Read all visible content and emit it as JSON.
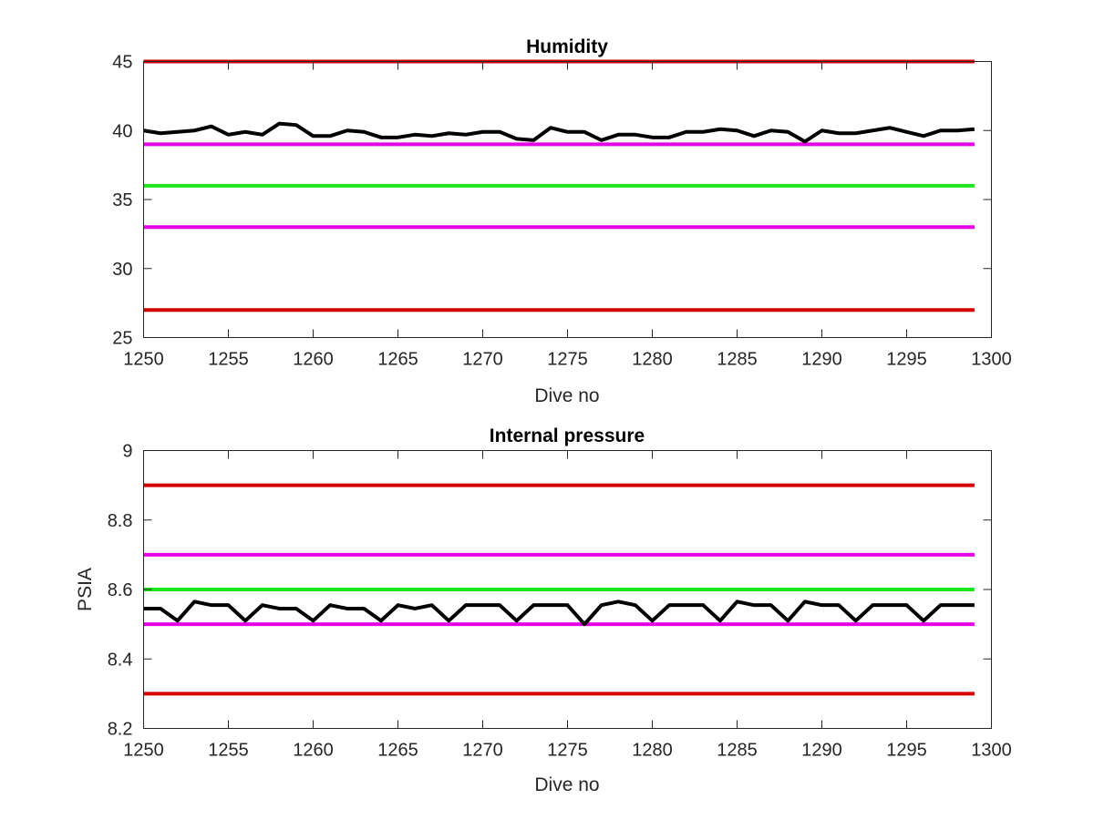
{
  "chart_data": [
    {
      "type": "line",
      "title": "Humidity",
      "xlabel": "Dive no",
      "ylabel": "",
      "xlim": [
        1250,
        1300
      ],
      "ylim": [
        25,
        45
      ],
      "xticks": [
        "1250",
        "1255",
        "1260",
        "1265",
        "1270",
        "1275",
        "1280",
        "1285",
        "1290",
        "1295",
        "1300"
      ],
      "yticks": [
        "25",
        "30",
        "35",
        "40",
        "45"
      ],
      "grid": false,
      "series": [
        {
          "color": "#d40000",
          "x": [
            1250,
            1299
          ],
          "y": [
            45,
            45
          ]
        },
        {
          "color": "#e600e6",
          "x": [
            1250,
            1299
          ],
          "y": [
            39,
            39
          ]
        },
        {
          "color": "#1ee61e",
          "x": [
            1250,
            1299
          ],
          "y": [
            36,
            36
          ]
        },
        {
          "color": "#e600e6",
          "x": [
            1250,
            1299
          ],
          "y": [
            33,
            33
          ]
        },
        {
          "color": "#d40000",
          "x": [
            1250,
            1299
          ],
          "y": [
            27,
            27
          ]
        },
        {
          "color": "#000000",
          "x": [
            1250,
            1251,
            1252,
            1253,
            1254,
            1255,
            1256,
            1257,
            1258,
            1259,
            1260,
            1261,
            1262,
            1263,
            1264,
            1265,
            1266,
            1267,
            1268,
            1269,
            1270,
            1271,
            1272,
            1273,
            1274,
            1275,
            1276,
            1277,
            1278,
            1279,
            1280,
            1281,
            1282,
            1283,
            1284,
            1285,
            1286,
            1287,
            1288,
            1289,
            1290,
            1291,
            1292,
            1293,
            1294,
            1295,
            1296,
            1297,
            1298,
            1299
          ],
          "y": [
            40.0,
            39.8,
            39.9,
            40.0,
            40.3,
            39.7,
            39.9,
            39.7,
            40.5,
            40.4,
            39.6,
            39.6,
            40.0,
            39.9,
            39.5,
            39.5,
            39.7,
            39.6,
            39.8,
            39.7,
            39.9,
            39.9,
            39.4,
            39.3,
            40.2,
            39.9,
            39.9,
            39.3,
            39.7,
            39.7,
            39.5,
            39.5,
            39.9,
            39.9,
            40.1,
            40.0,
            39.6,
            40.0,
            39.9,
            39.2,
            40.0,
            39.8,
            39.8,
            40.0,
            40.2,
            39.9,
            39.6,
            40.0,
            40.0,
            40.1
          ]
        }
      ]
    },
    {
      "type": "line",
      "title": "Internal pressure",
      "xlabel": "Dive no",
      "ylabel": "PSIA",
      "xlim": [
        1250,
        1300
      ],
      "ylim": [
        8.2,
        9.0
      ],
      "xticks": [
        "1250",
        "1255",
        "1260",
        "1265",
        "1270",
        "1275",
        "1280",
        "1285",
        "1290",
        "1295",
        "1300"
      ],
      "yticks": [
        "8.2",
        "8.4",
        "8.6",
        "8.8",
        "9"
      ],
      "grid": false,
      "series": [
        {
          "color": "#d40000",
          "x": [
            1250,
            1299
          ],
          "y": [
            8.9,
            8.9
          ]
        },
        {
          "color": "#e600e6",
          "x": [
            1250,
            1299
          ],
          "y": [
            8.7,
            8.7
          ]
        },
        {
          "color": "#1ee61e",
          "x": [
            1250,
            1299
          ],
          "y": [
            8.6,
            8.6
          ]
        },
        {
          "color": "#e600e6",
          "x": [
            1250,
            1299
          ],
          "y": [
            8.5,
            8.5
          ]
        },
        {
          "color": "#d40000",
          "x": [
            1250,
            1299
          ],
          "y": [
            8.3,
            8.3
          ]
        },
        {
          "color": "#000000",
          "x": [
            1250,
            1251,
            1252,
            1253,
            1254,
            1255,
            1256,
            1257,
            1258,
            1259,
            1260,
            1261,
            1262,
            1263,
            1264,
            1265,
            1266,
            1267,
            1268,
            1269,
            1270,
            1271,
            1272,
            1273,
            1274,
            1275,
            1276,
            1277,
            1278,
            1279,
            1280,
            1281,
            1282,
            1283,
            1284,
            1285,
            1286,
            1287,
            1288,
            1289,
            1290,
            1291,
            1292,
            1293,
            1294,
            1295,
            1296,
            1297,
            1298,
            1299
          ],
          "y": [
            8.545,
            8.545,
            8.51,
            8.565,
            8.555,
            8.555,
            8.51,
            8.555,
            8.545,
            8.545,
            8.51,
            8.555,
            8.545,
            8.545,
            8.51,
            8.555,
            8.545,
            8.555,
            8.51,
            8.555,
            8.555,
            8.555,
            8.51,
            8.555,
            8.555,
            8.555,
            8.5,
            8.555,
            8.565,
            8.555,
            8.51,
            8.555,
            8.555,
            8.555,
            8.51,
            8.565,
            8.555,
            8.555,
            8.51,
            8.565,
            8.555,
            8.555,
            8.51,
            8.555,
            8.555,
            8.555,
            8.51,
            8.555,
            8.555,
            8.555
          ]
        }
      ]
    }
  ]
}
